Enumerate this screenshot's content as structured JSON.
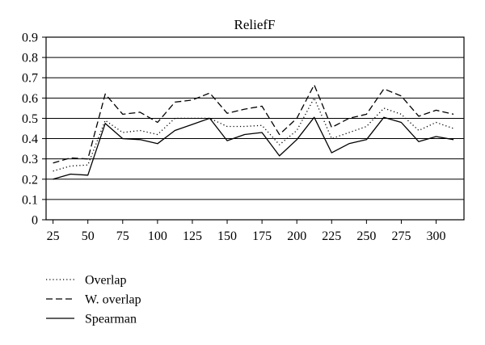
{
  "chart_data": {
    "type": "line",
    "title": "ReliefF",
    "xlabel": "",
    "ylabel": "",
    "x": [
      25,
      37.5,
      50,
      62.5,
      75,
      87.5,
      100,
      112.5,
      125,
      137.5,
      150,
      162.5,
      175,
      187.5,
      200,
      212.5,
      225,
      237.5,
      250,
      262.5,
      275,
      287.5,
      300,
      312.5
    ],
    "xlim": [
      20,
      320
    ],
    "ylim": [
      0,
      0.9
    ],
    "x_ticks": [
      "25",
      "50",
      "75",
      "100",
      "125",
      "150",
      "175",
      "200",
      "225",
      "250",
      "275",
      "300"
    ],
    "y_ticks": [
      "0",
      "0.1",
      "0.2",
      "0.3",
      "0.4",
      "0.5",
      "0.6",
      "0.7",
      "0.8",
      "0.9"
    ],
    "grid": "horizontal",
    "legend_position": "below",
    "series": [
      {
        "name": "Overlap",
        "style": "dotted",
        "values": [
          0.24,
          0.265,
          0.27,
          0.49,
          0.43,
          0.44,
          0.42,
          0.5,
          0.5,
          0.5,
          0.46,
          0.46,
          0.465,
          0.37,
          0.44,
          0.6,
          0.4,
          0.43,
          0.46,
          0.55,
          0.52,
          0.44,
          0.48,
          0.45
        ]
      },
      {
        "name": "W. overlap",
        "style": "dashed",
        "values": [
          0.28,
          0.305,
          0.3,
          0.62,
          0.52,
          0.53,
          0.48,
          0.58,
          0.59,
          0.625,
          0.525,
          0.545,
          0.56,
          0.42,
          0.5,
          0.665,
          0.455,
          0.5,
          0.52,
          0.645,
          0.61,
          0.51,
          0.54,
          0.52
        ]
      },
      {
        "name": "Spearman",
        "style": "solid",
        "values": [
          0.2,
          0.225,
          0.22,
          0.475,
          0.4,
          0.395,
          0.375,
          0.44,
          0.47,
          0.5,
          0.39,
          0.42,
          0.43,
          0.315,
          0.395,
          0.505,
          0.33,
          0.375,
          0.395,
          0.505,
          0.48,
          0.385,
          0.41,
          0.395
        ]
      }
    ]
  }
}
